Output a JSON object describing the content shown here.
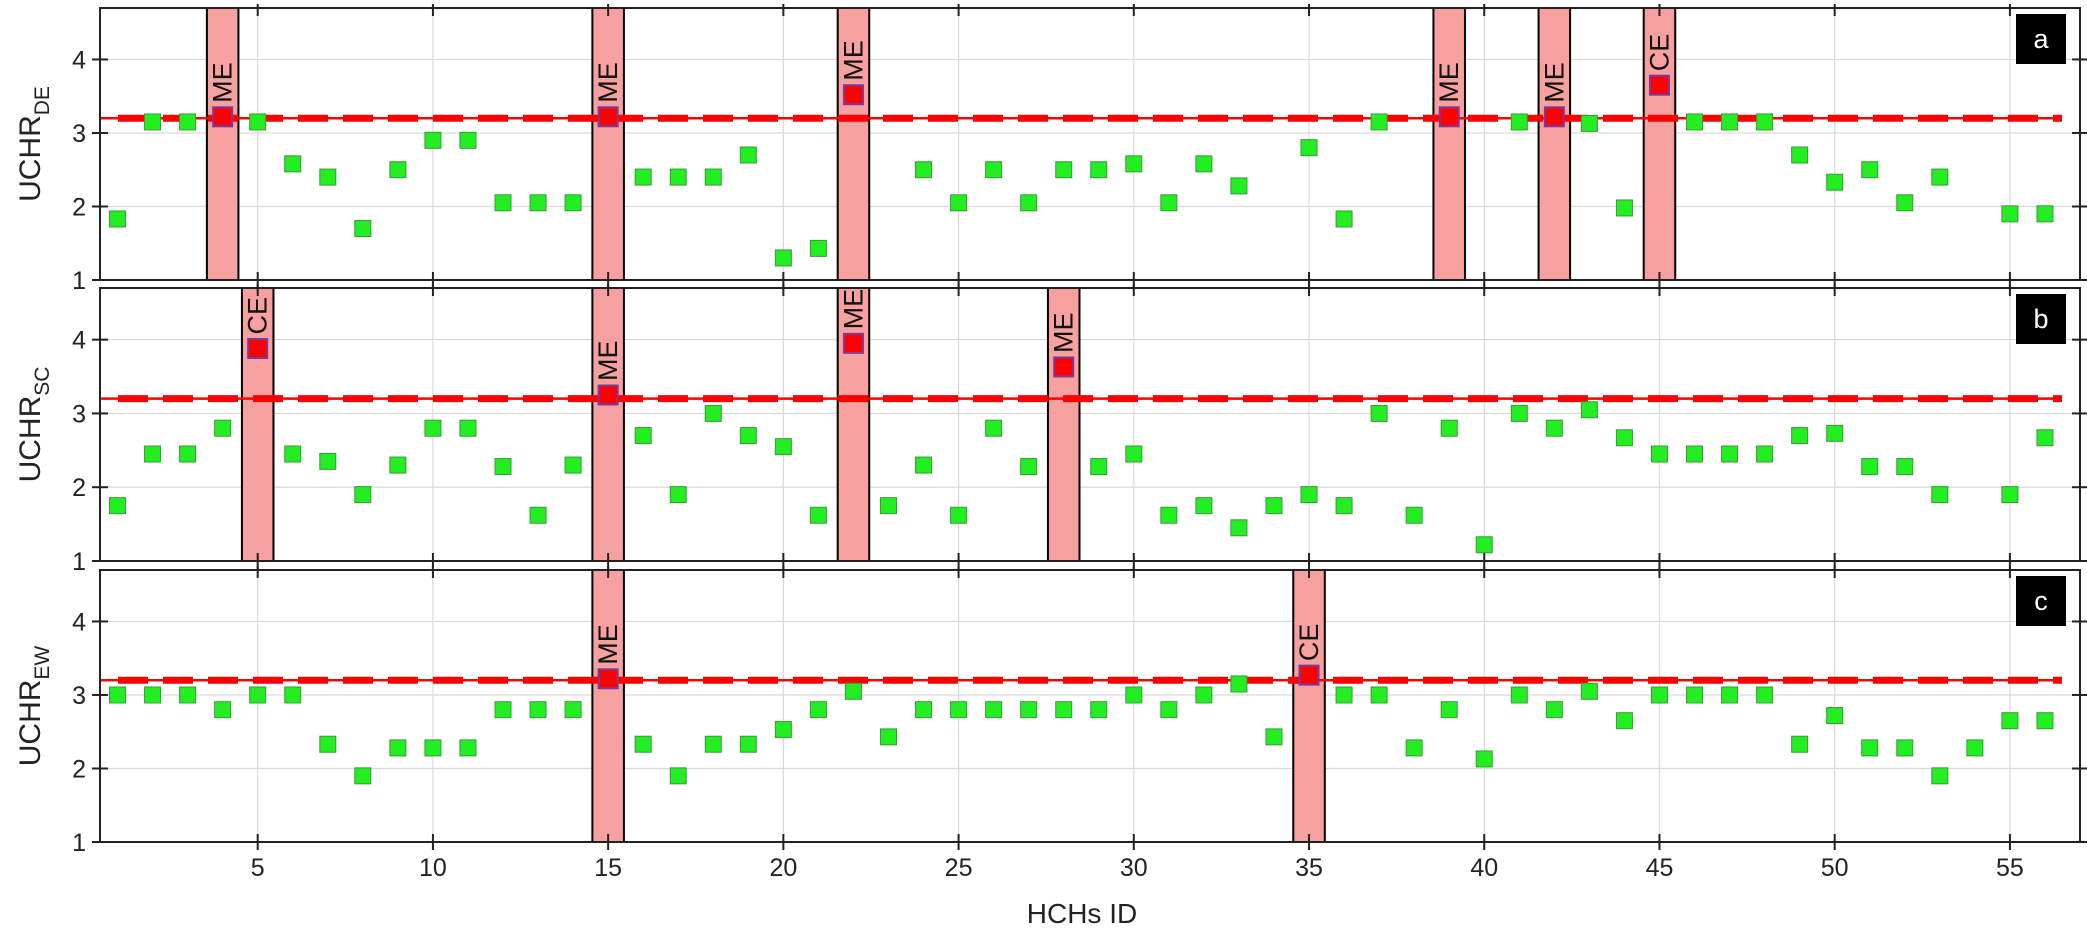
{
  "figure": {
    "xlabel": "HCHs ID"
  },
  "colors": {
    "normal_marker": "#22ee22",
    "anomaly_marker": "#ff0000",
    "anomaly_marker_edge": "#7a3a9a",
    "threshold_line": "#ff0000",
    "highlight_band": "#f6a0a0",
    "grid": "#d9d9d9",
    "panel_tag_bg": "#000000",
    "panel_tag_fg": "#ffffff"
  },
  "chart_data": [
    {
      "type": "scatter",
      "panel_tag": "a",
      "ylabel_main": "UCHR",
      "ylabel_sub": "DE",
      "xlim": [
        0.5,
        57
      ],
      "ylim": [
        1,
        4.7
      ],
      "xticks": [
        5,
        10,
        15,
        20,
        25,
        30,
        35,
        40,
        45,
        50,
        55
      ],
      "xtick_labels": [
        "",
        "",
        "",
        "",
        "",
        "",
        "",
        "",
        "",
        "",
        ""
      ],
      "yticks": [
        1,
        2,
        3,
        4
      ],
      "ytick_labels": [
        "1",
        "2",
        "3",
        "4"
      ],
      "grid": true,
      "threshold": 3.2,
      "threshold_style": "solid line with dashed overlay",
      "series": [
        {
          "x": [
            1,
            2,
            3,
            4,
            5,
            6,
            7,
            8,
            9,
            10,
            11,
            12,
            13,
            14,
            15,
            16,
            17,
            18,
            19,
            20,
            21,
            22,
            23,
            24,
            25,
            26,
            27,
            28,
            29,
            30,
            31,
            32,
            33,
            34,
            35,
            36,
            37,
            38,
            39,
            40,
            41,
            42,
            43,
            44,
            45,
            46,
            47,
            48,
            49,
            50,
            51,
            52,
            53,
            54,
            55,
            56
          ],
          "y": [
            1.83,
            3.15,
            3.15,
            3.22,
            3.15,
            2.58,
            2.4,
            1.7,
            2.5,
            2.9,
            2.9,
            2.05,
            2.05,
            2.05,
            3.22,
            2.4,
            2.4,
            2.4,
            2.7,
            1.3,
            1.43,
            3.52,
            null,
            2.5,
            2.05,
            2.5,
            2.05,
            2.5,
            2.5,
            2.58,
            2.05,
            2.58,
            2.28,
            null,
            2.8,
            1.83,
            3.15,
            null,
            3.22,
            null,
            3.15,
            3.22,
            3.13,
            1.98,
            3.65,
            3.15,
            3.15,
            3.15,
            2.7,
            2.33,
            2.5,
            2.05,
            2.4,
            null,
            1.9,
            1.9
          ]
        }
      ],
      "events": [
        {
          "x": 4,
          "label": "ME"
        },
        {
          "x": 15,
          "label": "ME"
        },
        {
          "x": 22,
          "label": "ME"
        },
        {
          "x": 39,
          "label": "ME"
        },
        {
          "x": 42,
          "label": "ME"
        },
        {
          "x": 45,
          "label": "CE"
        }
      ]
    },
    {
      "type": "scatter",
      "panel_tag": "b",
      "ylabel_main": "UCHR",
      "ylabel_sub": "SC",
      "xlim": [
        0.5,
        57
      ],
      "ylim": [
        1,
        4.7
      ],
      "xticks": [
        5,
        10,
        15,
        20,
        25,
        30,
        35,
        40,
        45,
        50,
        55
      ],
      "xtick_labels": [
        "",
        "",
        "",
        "",
        "",
        "",
        "",
        "",
        "",
        "",
        ""
      ],
      "yticks": [
        1,
        2,
        3,
        4
      ],
      "ytick_labels": [
        "1",
        "2",
        "3",
        "4"
      ],
      "grid": true,
      "threshold": 3.2,
      "threshold_style": "solid line with dashed overlay",
      "series": [
        {
          "x": [
            1,
            2,
            3,
            4,
            5,
            6,
            7,
            8,
            9,
            10,
            11,
            12,
            13,
            14,
            15,
            16,
            17,
            18,
            19,
            20,
            21,
            22,
            23,
            24,
            25,
            26,
            27,
            28,
            29,
            30,
            31,
            32,
            33,
            34,
            35,
            36,
            37,
            38,
            39,
            40,
            41,
            42,
            43,
            44,
            45,
            46,
            47,
            48,
            49,
            50,
            51,
            52,
            53,
            54,
            55,
            56
          ],
          "y": [
            1.75,
            2.45,
            2.45,
            2.8,
            3.88,
            2.45,
            2.35,
            1.9,
            2.3,
            2.8,
            2.8,
            2.28,
            1.62,
            2.3,
            3.25,
            2.7,
            1.9,
            3.0,
            2.7,
            2.55,
            1.62,
            3.95,
            1.75,
            2.3,
            1.62,
            2.8,
            2.28,
            3.63,
            2.28,
            2.45,
            1.62,
            1.75,
            1.45,
            1.75,
            1.9,
            1.75,
            3.0,
            1.62,
            2.8,
            1.22,
            3.0,
            2.8,
            3.05,
            2.67,
            2.45,
            2.45,
            2.45,
            2.45,
            2.7,
            2.73,
            2.28,
            2.28,
            1.9,
            null,
            1.9,
            2.67
          ]
        }
      ],
      "events": [
        {
          "x": 5,
          "label": "CE"
        },
        {
          "x": 15,
          "label": "ME"
        },
        {
          "x": 22,
          "label": "ME"
        },
        {
          "x": 28,
          "label": "ME"
        }
      ]
    },
    {
      "type": "scatter",
      "panel_tag": "c",
      "ylabel_main": "UCHR",
      "ylabel_sub": "EW",
      "xlim": [
        0.5,
        57
      ],
      "ylim": [
        1,
        4.7
      ],
      "xticks": [
        5,
        10,
        15,
        20,
        25,
        30,
        35,
        40,
        45,
        50,
        55
      ],
      "xtick_labels": [
        "5",
        "10",
        "15",
        "20",
        "25",
        "30",
        "35",
        "40",
        "45",
        "50",
        "55"
      ],
      "yticks": [
        1,
        2,
        3,
        4
      ],
      "ytick_labels": [
        "1",
        "2",
        "3",
        "4"
      ],
      "grid": true,
      "threshold": 3.2,
      "threshold_style": "solid line with dashed overlay",
      "series": [
        {
          "x": [
            1,
            2,
            3,
            4,
            5,
            6,
            7,
            8,
            9,
            10,
            11,
            12,
            13,
            14,
            15,
            16,
            17,
            18,
            19,
            20,
            21,
            22,
            23,
            24,
            25,
            26,
            27,
            28,
            29,
            30,
            31,
            32,
            33,
            34,
            35,
            36,
            37,
            38,
            39,
            40,
            41,
            42,
            43,
            44,
            45,
            46,
            47,
            48,
            49,
            50,
            51,
            52,
            53,
            54,
            55,
            56
          ],
          "y": [
            3.0,
            3.0,
            3.0,
            2.8,
            3.0,
            3.0,
            2.33,
            1.9,
            2.28,
            2.28,
            2.28,
            2.8,
            2.8,
            2.8,
            3.22,
            2.33,
            1.9,
            2.33,
            2.33,
            2.53,
            2.8,
            3.05,
            2.43,
            2.8,
            2.8,
            2.8,
            2.8,
            2.8,
            2.8,
            3.0,
            2.8,
            3.0,
            3.15,
            2.43,
            3.27,
            3.0,
            3.0,
            2.28,
            2.8,
            2.13,
            3.0,
            2.8,
            3.05,
            2.65,
            3.0,
            3.0,
            3.0,
            3.0,
            2.33,
            2.72,
            2.28,
            2.28,
            1.9,
            2.28,
            2.65,
            2.65
          ]
        }
      ],
      "events": [
        {
          "x": 15,
          "label": "ME"
        },
        {
          "x": 35,
          "label": "CE"
        }
      ]
    }
  ]
}
